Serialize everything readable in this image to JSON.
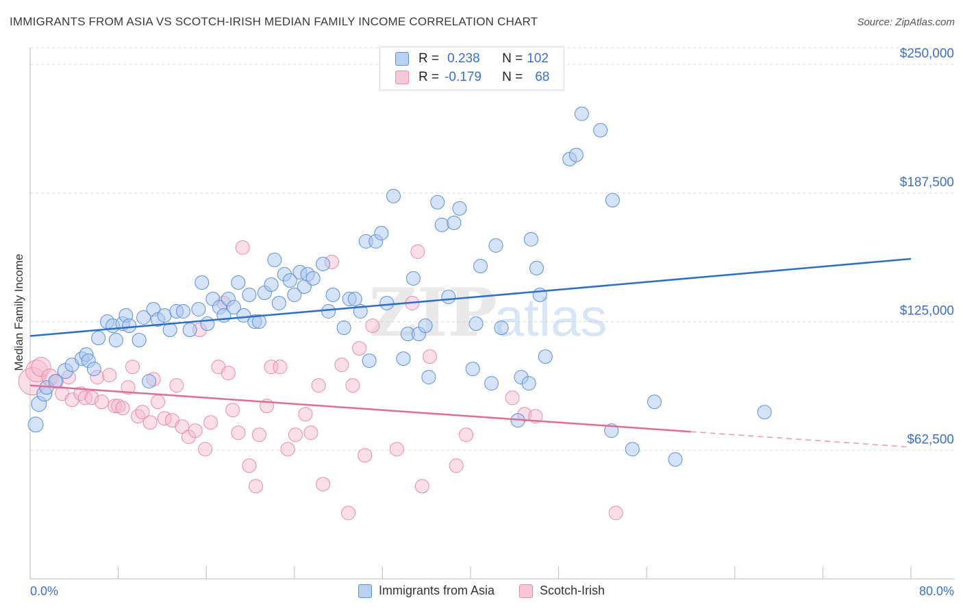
{
  "header": {
    "title": "IMMIGRANTS FROM ASIA VS SCOTCH-IRISH MEDIAN FAMILY INCOME CORRELATION CHART",
    "source": "Source: ZipAtlas.com"
  },
  "legend_top": {
    "rows": [
      {
        "r_label": "R =",
        "r_value": "0.238",
        "n_label": "N =",
        "n_value": "102"
      },
      {
        "r_label": "R =",
        "r_value": "-0.179",
        "n_label": "N =",
        "n_value": "68"
      }
    ]
  },
  "watermark": {
    "zip": "ZIP",
    "atlas": "atlas"
  },
  "colors": {
    "blue_fill": "#a9c7ef",
    "blue_stroke": "#5b8fd6",
    "blue_line": "#2a6fd0",
    "pink_fill": "#f6b9cb",
    "pink_stroke": "#e98aa8",
    "pink_line": "#e36b95",
    "axis_text": "#3a6fd0",
    "grid": "#d9d9d9"
  },
  "chart_data": {
    "type": "scatter",
    "title": "IMMIGRANTS FROM ASIA VS SCOTCH-IRISH MEDIAN FAMILY INCOME CORRELATION CHART",
    "xlabel": "",
    "ylabel": "Median Family Income",
    "xlim": [
      0,
      80
    ],
    "ylim": [
      0,
      258000
    ],
    "x_tick_labels": [
      "0.0%",
      "80.0%"
    ],
    "y_ticks": [
      62500,
      125000,
      187500,
      250000
    ],
    "y_tick_labels": [
      "$62,500",
      "$125,000",
      "$187,500",
      "$250,000"
    ],
    "grid": "horizontal dashed",
    "legend_position": "top-center and bottom",
    "series": [
      {
        "name": "Immigrants from Asia",
        "color": "#a9c7ef",
        "trend": {
          "x": [
            0,
            80
          ],
          "y": [
            118000,
            155500
          ]
        },
        "points": [
          [
            0.5,
            75000,
            11
          ],
          [
            0.8,
            85000,
            11
          ],
          [
            1.3,
            90000,
            11
          ],
          [
            1.5,
            93000,
            10
          ],
          [
            2.3,
            96000,
            10
          ],
          [
            3.2,
            101000,
            11
          ],
          [
            3.8,
            104000,
            10
          ],
          [
            4.7,
            107000,
            10
          ],
          [
            5.1,
            109000,
            10
          ],
          [
            5.3,
            106000,
            10
          ],
          [
            5.8,
            102000,
            10
          ],
          [
            6.2,
            117000,
            10
          ],
          [
            7.0,
            125000,
            10
          ],
          [
            7.5,
            123000,
            10
          ],
          [
            7.8,
            116000,
            10
          ],
          [
            8.4,
            124000,
            10
          ],
          [
            8.7,
            128000,
            10
          ],
          [
            9.0,
            123000,
            10
          ],
          [
            9.9,
            116000,
            10
          ],
          [
            10.3,
            127000,
            10
          ],
          [
            10.8,
            96000,
            10
          ],
          [
            11.2,
            131000,
            10
          ],
          [
            11.6,
            126000,
            10
          ],
          [
            12.2,
            128000,
            10
          ],
          [
            12.7,
            121000,
            10
          ],
          [
            13.3,
            130000,
            10
          ],
          [
            13.9,
            130000,
            10
          ],
          [
            14.5,
            121000,
            10
          ],
          [
            15.3,
            131000,
            10
          ],
          [
            15.6,
            144000,
            10
          ],
          [
            16.1,
            124000,
            10
          ],
          [
            16.6,
            136000,
            10
          ],
          [
            17.2,
            132000,
            10
          ],
          [
            17.6,
            128000,
            10
          ],
          [
            18.0,
            136000,
            10
          ],
          [
            18.5,
            132000,
            10
          ],
          [
            18.9,
            144000,
            10
          ],
          [
            19.4,
            128000,
            10
          ],
          [
            19.9,
            138000,
            10
          ],
          [
            20.4,
            125000,
            10
          ],
          [
            20.8,
            125000,
            10
          ],
          [
            21.3,
            139000,
            10
          ],
          [
            21.9,
            143000,
            10
          ],
          [
            22.2,
            155000,
            10
          ],
          [
            22.6,
            134000,
            10
          ],
          [
            23.1,
            148000,
            10
          ],
          [
            23.6,
            145000,
            10
          ],
          [
            24.0,
            138000,
            10
          ],
          [
            24.5,
            149000,
            10
          ],
          [
            24.9,
            142000,
            10
          ],
          [
            25.2,
            148000,
            10
          ],
          [
            25.7,
            146000,
            10
          ],
          [
            26.6,
            153000,
            10
          ],
          [
            27.1,
            130000,
            10
          ],
          [
            27.5,
            138000,
            10
          ],
          [
            28.5,
            122000,
            10
          ],
          [
            29.0,
            136000,
            10
          ],
          [
            29.5,
            136000,
            10
          ],
          [
            30.0,
            130000,
            10
          ],
          [
            30.5,
            164000,
            10
          ],
          [
            30.8,
            106000,
            10
          ],
          [
            31.4,
            164000,
            10
          ],
          [
            31.9,
            168000,
            10
          ],
          [
            32.4,
            134000,
            10
          ],
          [
            33.0,
            186000,
            10
          ],
          [
            33.9,
            107000,
            10
          ],
          [
            34.3,
            119000,
            10
          ],
          [
            34.8,
            146000,
            10
          ],
          [
            35.3,
            119000,
            10
          ],
          [
            35.9,
            123000,
            10
          ],
          [
            36.2,
            98000,
            10
          ],
          [
            37.0,
            183000,
            10
          ],
          [
            37.4,
            172000,
            10
          ],
          [
            38.0,
            137000,
            10
          ],
          [
            38.5,
            173000,
            10
          ],
          [
            39.0,
            180000,
            10
          ],
          [
            40.2,
            102000,
            10
          ],
          [
            40.5,
            124000,
            10
          ],
          [
            40.9,
            152000,
            10
          ],
          [
            41.9,
            95000,
            10
          ],
          [
            42.3,
            162000,
            10
          ],
          [
            42.8,
            122000,
            10
          ],
          [
            44.3,
            77000,
            10
          ],
          [
            44.6,
            98000,
            10
          ],
          [
            45.3,
            95000,
            10
          ],
          [
            45.5,
            165000,
            10
          ],
          [
            46.0,
            151000,
            10
          ],
          [
            46.3,
            138000,
            10
          ],
          [
            46.8,
            108000,
            10
          ],
          [
            49.0,
            204000,
            10
          ],
          [
            49.6,
            206000,
            10
          ],
          [
            50.1,
            226000,
            10
          ],
          [
            51.8,
            218000,
            10
          ],
          [
            52.8,
            72000,
            10
          ],
          [
            52.9,
            184000,
            10
          ],
          [
            54.7,
            63000,
            10
          ],
          [
            56.7,
            86000,
            10
          ],
          [
            58.6,
            58000,
            10
          ],
          [
            66.7,
            81000,
            10
          ]
        ]
      },
      {
        "name": "Scotch-Irish",
        "color": "#f6b9cb",
        "trend": {
          "x": [
            0,
            60
          ],
          "y": [
            94000,
            71500
          ]
        },
        "trend_dashed": {
          "x": [
            60,
            80
          ],
          "y": [
            71500,
            64000
          ]
        },
        "points": [
          [
            0.2,
            96000,
            20
          ],
          [
            0.6,
            101000,
            16
          ],
          [
            1.0,
            103000,
            14
          ],
          [
            1.8,
            98000,
            12
          ],
          [
            2.4,
            96000,
            10
          ],
          [
            2.9,
            90000,
            10
          ],
          [
            3.5,
            98000,
            10
          ],
          [
            3.8,
            87000,
            10
          ],
          [
            4.6,
            90000,
            10
          ],
          [
            5.0,
            88000,
            10
          ],
          [
            5.6,
            88000,
            10
          ],
          [
            6.1,
            98000,
            10
          ],
          [
            6.5,
            86000,
            10
          ],
          [
            7.2,
            99000,
            10
          ],
          [
            7.7,
            84000,
            10
          ],
          [
            8.0,
            84000,
            10
          ],
          [
            8.4,
            83000,
            10
          ],
          [
            8.9,
            93000,
            10
          ],
          [
            9.3,
            103000,
            10
          ],
          [
            9.8,
            79000,
            10
          ],
          [
            10.2,
            81000,
            10
          ],
          [
            10.9,
            76000,
            10
          ],
          [
            11.2,
            97000,
            10
          ],
          [
            11.6,
            86000,
            10
          ],
          [
            12.2,
            78000,
            10
          ],
          [
            12.9,
            77000,
            10
          ],
          [
            13.3,
            94000,
            10
          ],
          [
            13.8,
            74000,
            10
          ],
          [
            14.4,
            69000,
            10
          ],
          [
            15.0,
            72000,
            10
          ],
          [
            15.4,
            121000,
            10
          ],
          [
            15.9,
            63000,
            10
          ],
          [
            16.4,
            76000,
            10
          ],
          [
            17.1,
            103000,
            10
          ],
          [
            17.6,
            134000,
            10
          ],
          [
            18.0,
            100000,
            10
          ],
          [
            18.4,
            82000,
            10
          ],
          [
            18.9,
            71000,
            10
          ],
          [
            19.3,
            161000,
            10
          ],
          [
            19.9,
            55000,
            10
          ],
          [
            20.5,
            45000,
            10
          ],
          [
            20.8,
            70000,
            10
          ],
          [
            21.5,
            84000,
            10
          ],
          [
            21.9,
            103000,
            10
          ],
          [
            22.7,
            103000,
            10
          ],
          [
            23.4,
            63000,
            10
          ],
          [
            24.1,
            70000,
            10
          ],
          [
            25.0,
            80000,
            10
          ],
          [
            25.5,
            71000,
            10
          ],
          [
            26.2,
            94000,
            10
          ],
          [
            26.6,
            46000,
            10
          ],
          [
            27.4,
            154000,
            10
          ],
          [
            28.3,
            104000,
            10
          ],
          [
            28.9,
            32000,
            10
          ],
          [
            29.3,
            94000,
            10
          ],
          [
            29.9,
            112000,
            10
          ],
          [
            30.4,
            60000,
            10
          ],
          [
            31.1,
            123000,
            10
          ],
          [
            33.3,
            63000,
            10
          ],
          [
            34.7,
            134000,
            10
          ],
          [
            35.2,
            159000,
            10
          ],
          [
            35.6,
            45000,
            10
          ],
          [
            36.3,
            108000,
            10
          ],
          [
            38.7,
            55000,
            10
          ],
          [
            39.6,
            70000,
            10
          ],
          [
            43.8,
            88000,
            10
          ],
          [
            44.9,
            80000,
            10
          ],
          [
            45.9,
            79000,
            10
          ],
          [
            53.2,
            32000,
            10
          ]
        ]
      }
    ]
  },
  "legend_bottom": {
    "items": [
      {
        "label": "Immigrants from Asia"
      },
      {
        "label": "Scotch-Irish"
      }
    ]
  }
}
